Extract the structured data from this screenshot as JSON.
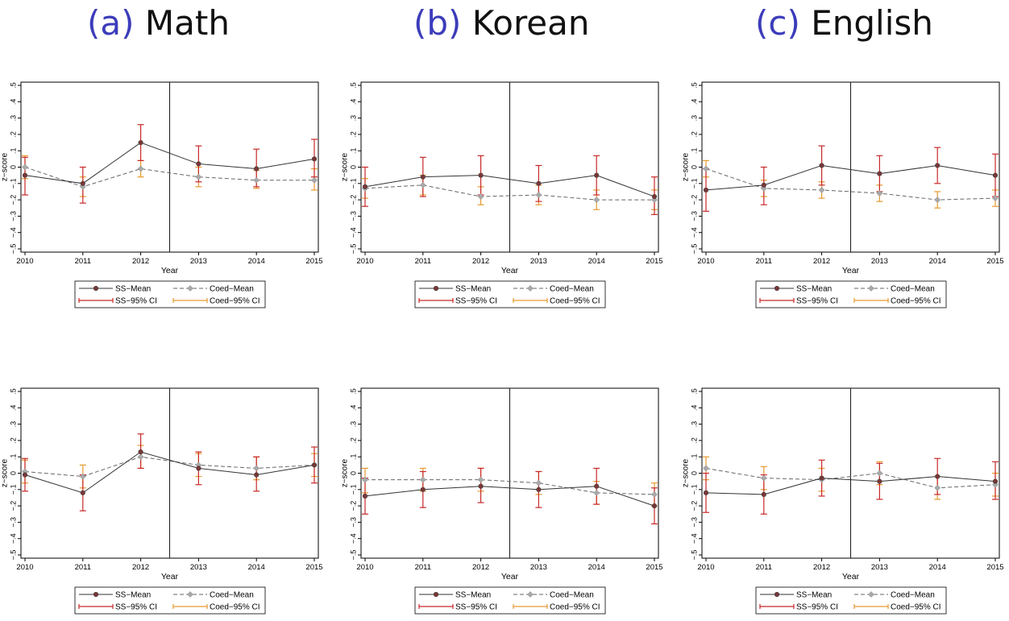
{
  "column_titles": [
    {
      "label": "(a)",
      "subject": "Math"
    },
    {
      "label": "(b)",
      "subject": "Korean"
    },
    {
      "label": "(c)",
      "subject": "English"
    }
  ],
  "colors": {
    "title_label": "#3c3cbb",
    "ss_mean": "#333333",
    "ss_marker": "#7a3636",
    "coed_mean": "#666666",
    "coed_marker": "#a9a9a9",
    "ss_ci": "#c82828",
    "coed_ci": "#e69a2e",
    "cutoff_line": "#222222"
  },
  "legend": {
    "ss_mean": "SS−Mean",
    "coed_mean": "Coed−Mean",
    "ss_ci": "SS−95% CI",
    "coed_ci": "Coed−95% CI"
  },
  "chart_data": [
    {
      "type": "line",
      "panel": "row1-math",
      "xlabel": "Year",
      "ylabel": "z−score",
      "x": [
        2010,
        2011,
        2012,
        2013,
        2014,
        2015
      ],
      "ylim": [
        -0.5,
        0.5
      ],
      "yticks": [
        ".5",
        ".4",
        ".3",
        ".2",
        ".1",
        "0",
        "−.1",
        "−.2",
        "−.3",
        "−.4",
        "−.5"
      ],
      "vline_x": 2012.5,
      "series": [
        {
          "name": "SS−Mean",
          "values": [
            -0.05,
            -0.1,
            0.15,
            0.02,
            -0.01,
            0.05
          ],
          "ci_low": [
            -0.17,
            -0.22,
            0.04,
            -0.09,
            -0.12,
            -0.06
          ],
          "ci_high": [
            0.06,
            0.0,
            0.26,
            0.13,
            0.11,
            0.17
          ]
        },
        {
          "name": "Coed−Mean",
          "values": [
            0.0,
            -0.12,
            -0.01,
            -0.06,
            -0.08,
            -0.08
          ],
          "ci_low": [
            -0.07,
            -0.18,
            -0.06,
            -0.12,
            -0.13,
            -0.14
          ],
          "ci_high": [
            0.07,
            -0.06,
            0.04,
            0.0,
            -0.02,
            -0.01
          ]
        }
      ]
    },
    {
      "type": "line",
      "panel": "row1-korean",
      "xlabel": "Year",
      "ylabel": "z−score",
      "x": [
        2010,
        2011,
        2012,
        2013,
        2014,
        2015
      ],
      "ylim": [
        -0.5,
        0.5
      ],
      "yticks": [
        ".5",
        ".4",
        ".3",
        ".2",
        ".1",
        "0",
        "−.1",
        "−.2",
        "−.3",
        "−.4",
        "−.5"
      ],
      "vline_x": 2012.5,
      "series": [
        {
          "name": "SS−Mean",
          "values": [
            -0.12,
            -0.06,
            -0.05,
            -0.1,
            -0.05,
            -0.18
          ],
          "ci_low": [
            -0.24,
            -0.18,
            -0.17,
            -0.21,
            -0.17,
            -0.29
          ],
          "ci_high": [
            0.0,
            0.06,
            0.07,
            0.01,
            0.07,
            -0.06
          ]
        },
        {
          "name": "Coed−Mean",
          "values": [
            -0.13,
            -0.11,
            -0.18,
            -0.17,
            -0.2,
            -0.2
          ],
          "ci_low": [
            -0.19,
            -0.17,
            -0.23,
            -0.23,
            -0.26,
            -0.26
          ],
          "ci_high": [
            -0.07,
            -0.05,
            -0.12,
            -0.11,
            -0.14,
            -0.14
          ]
        }
      ]
    },
    {
      "type": "line",
      "panel": "row1-english",
      "xlabel": "Year",
      "ylabel": "z−score",
      "x": [
        2010,
        2011,
        2012,
        2013,
        2014,
        2015
      ],
      "ylim": [
        -0.5,
        0.5
      ],
      "yticks": [
        ".5",
        ".4",
        ".3",
        ".2",
        ".1",
        "0",
        "−.1",
        "−.2",
        "−.3",
        "−.4",
        "−.5"
      ],
      "vline_x": 2012.5,
      "series": [
        {
          "name": "SS−Mean",
          "values": [
            -0.14,
            -0.11,
            0.01,
            -0.04,
            0.01,
            -0.05
          ],
          "ci_low": [
            -0.27,
            -0.23,
            -0.11,
            -0.15,
            -0.1,
            -0.18
          ],
          "ci_high": [
            -0.01,
            0.0,
            0.13,
            0.07,
            0.12,
            0.08
          ]
        },
        {
          "name": "Coed−Mean",
          "values": [
            -0.01,
            -0.13,
            -0.14,
            -0.16,
            -0.2,
            -0.19
          ],
          "ci_low": [
            -0.06,
            -0.18,
            -0.19,
            -0.21,
            -0.25,
            -0.24
          ],
          "ci_high": [
            0.04,
            -0.08,
            -0.09,
            -0.11,
            -0.15,
            -0.14
          ]
        }
      ]
    },
    {
      "type": "line",
      "panel": "row2-math",
      "xlabel": "Year",
      "ylabel": "z−score",
      "x": [
        2010,
        2011,
        2012,
        2013,
        2014,
        2015
      ],
      "ylim": [
        -0.5,
        0.5
      ],
      "yticks": [
        ".5",
        ".4",
        ".3",
        ".2",
        ".1",
        "0",
        "−.1",
        "−.2",
        "−.3",
        "−.4",
        "−.5"
      ],
      "vline_x": 2012.5,
      "series": [
        {
          "name": "SS−Mean",
          "values": [
            -0.01,
            -0.12,
            0.13,
            0.03,
            -0.01,
            0.05
          ],
          "ci_low": [
            -0.11,
            -0.23,
            0.03,
            -0.07,
            -0.11,
            -0.06
          ],
          "ci_high": [
            0.09,
            -0.01,
            0.24,
            0.13,
            0.1,
            0.16
          ]
        },
        {
          "name": "Coed−Mean",
          "values": [
            0.01,
            -0.02,
            0.1,
            0.05,
            0.03,
            0.05
          ],
          "ci_low": [
            -0.06,
            -0.09,
            0.03,
            -0.02,
            -0.04,
            -0.02
          ],
          "ci_high": [
            0.08,
            0.05,
            0.17,
            0.12,
            0.1,
            0.12
          ]
        }
      ]
    },
    {
      "type": "line",
      "panel": "row2-korean",
      "xlabel": "Year",
      "ylabel": "z−score",
      "x": [
        2010,
        2011,
        2012,
        2013,
        2014,
        2015
      ],
      "ylim": [
        -0.5,
        0.5
      ],
      "yticks": [
        ".5",
        ".4",
        ".3",
        ".2",
        ".1",
        "0",
        "−.1",
        "−.2",
        "−.3",
        "−.4",
        "−.5"
      ],
      "vline_x": 2012.5,
      "series": [
        {
          "name": "SS−Mean",
          "values": [
            -0.14,
            -0.1,
            -0.08,
            -0.1,
            -0.08,
            -0.2
          ],
          "ci_low": [
            -0.25,
            -0.21,
            -0.18,
            -0.21,
            -0.19,
            -0.31
          ],
          "ci_high": [
            -0.03,
            0.01,
            0.03,
            0.01,
            0.03,
            -0.09
          ]
        },
        {
          "name": "Coed−Mean",
          "values": [
            -0.04,
            -0.04,
            -0.04,
            -0.06,
            -0.12,
            -0.13
          ],
          "ci_low": [
            -0.12,
            -0.11,
            -0.11,
            -0.13,
            -0.19,
            -0.2
          ],
          "ci_high": [
            0.03,
            0.03,
            0.03,
            0.01,
            -0.05,
            -0.06
          ]
        }
      ]
    },
    {
      "type": "line",
      "panel": "row2-english",
      "xlabel": "Year",
      "ylabel": "z−score",
      "x": [
        2010,
        2011,
        2012,
        2013,
        2014,
        2015
      ],
      "ylim": [
        -0.5,
        0.5
      ],
      "yticks": [
        ".5",
        ".4",
        ".3",
        ".2",
        ".1",
        "0",
        "−.1",
        "−.2",
        "−.3",
        "−.4",
        "−.5"
      ],
      "vline_x": 2012.5,
      "series": [
        {
          "name": "SS−Mean",
          "values": [
            -0.12,
            -0.13,
            -0.03,
            -0.05,
            -0.02,
            -0.05
          ],
          "ci_low": [
            -0.24,
            -0.25,
            -0.14,
            -0.16,
            -0.13,
            -0.16
          ],
          "ci_high": [
            0.0,
            -0.01,
            0.08,
            0.06,
            0.09,
            0.07
          ]
        },
        {
          "name": "Coed−Mean",
          "values": [
            0.03,
            -0.03,
            -0.04,
            0.0,
            -0.09,
            -0.07
          ],
          "ci_low": [
            -0.04,
            -0.1,
            -0.11,
            -0.07,
            -0.16,
            -0.14
          ],
          "ci_high": [
            0.1,
            0.04,
            0.03,
            0.07,
            -0.02,
            0.0
          ]
        }
      ]
    }
  ]
}
